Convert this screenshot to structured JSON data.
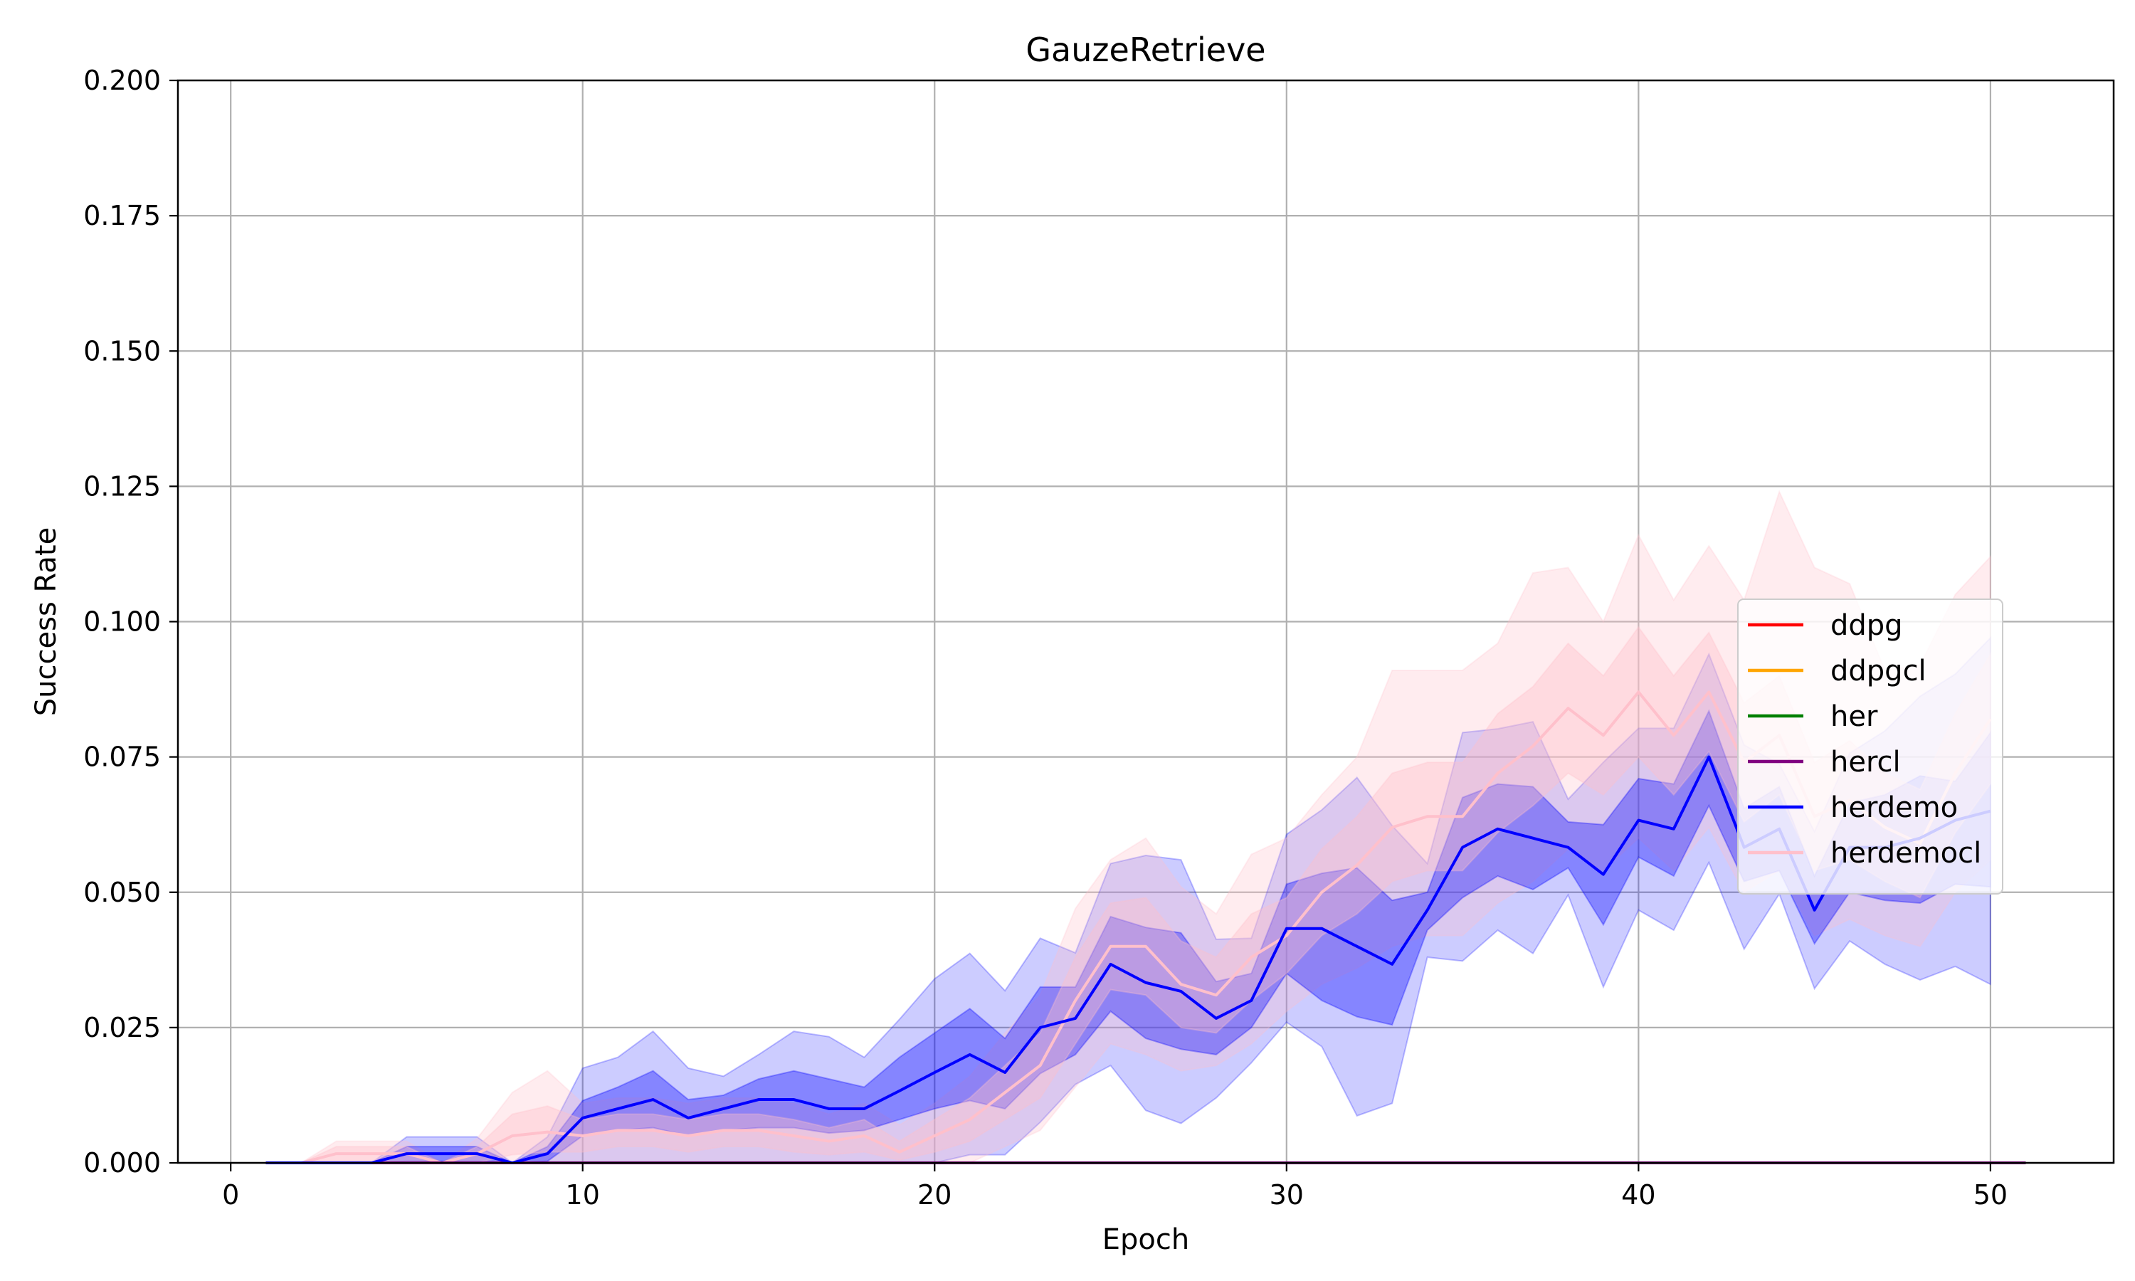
{
  "chart_data": {
    "type": "line",
    "title": "GauzeRetrieve",
    "xlabel": "Epoch",
    "ylabel": "Success Rate",
    "xlim": [
      -1.5,
      53.5
    ],
    "ylim": [
      0,
      0.2
    ],
    "xticks": [
      "0",
      "10",
      "20",
      "30",
      "40",
      "50"
    ],
    "xtick_values": [
      0,
      10,
      20,
      30,
      40,
      50
    ],
    "yticks": [
      "0.000",
      "0.025",
      "0.050",
      "0.075",
      "0.100",
      "0.125",
      "0.150",
      "0.175",
      "0.200"
    ],
    "ytick_values": [
      0,
      0.025,
      0.05,
      0.075,
      0.1,
      0.125,
      0.15,
      0.175,
      0.2
    ],
    "grid": true,
    "legend_position": "center-right",
    "series": [
      {
        "name": "ddpg",
        "color": "#ff0000",
        "x": [
          1,
          51
        ],
        "y": [
          0,
          0
        ]
      },
      {
        "name": "ddpgcl",
        "color": "#ffa500",
        "x": [
          1,
          51
        ],
        "y": [
          0,
          0
        ]
      },
      {
        "name": "her",
        "color": "#008000",
        "x": [
          1,
          51
        ],
        "y": [
          0,
          0
        ]
      },
      {
        "name": "hercl",
        "color": "#800080",
        "x": [
          1,
          51
        ],
        "y": [
          0,
          0
        ]
      },
      {
        "name": "herdemo",
        "color": "#0000ff",
        "x": [
          1,
          2,
          3,
          4,
          5,
          6,
          7,
          8,
          9,
          10,
          11,
          12,
          13,
          14,
          15,
          16,
          17,
          18,
          19,
          20,
          21,
          22,
          23,
          24,
          25,
          26,
          27,
          28,
          29,
          30,
          31,
          32,
          33,
          34,
          35,
          36,
          37,
          38,
          39,
          40,
          41,
          42,
          43,
          44,
          45,
          46,
          47,
          48,
          49,
          50
        ],
        "y": [
          0,
          0,
          0,
          0,
          0.0017,
          0.0017,
          0.0017,
          0,
          0.0017,
          0.0083,
          0.01,
          0.0117,
          0.0083,
          0.01,
          0.0117,
          0.0117,
          0.01,
          0.01,
          0.0133,
          0.0167,
          0.02,
          0.0167,
          0.025,
          0.0267,
          0.0367,
          0.0333,
          0.0317,
          0.0267,
          0.03,
          0.0433,
          0.0433,
          0.04,
          0.0367,
          0.0467,
          0.0583,
          0.0617,
          0.06,
          0.0583,
          0.0533,
          0.0633,
          0.0617,
          0.075,
          0.0583,
          0.0617,
          0.0467,
          0.0583,
          0.0583,
          0.06,
          0.0633,
          0.065
        ],
        "band_inner_low": [
          0,
          0,
          0,
          0,
          0.0003,
          0.0003,
          0.0003,
          0,
          0.0003,
          0.005,
          0.006,
          0.0065,
          0.005,
          0.006,
          0.0065,
          0.0065,
          0.0055,
          0.006,
          0.008,
          0.01,
          0.0115,
          0.01,
          0.0165,
          0.02,
          0.028,
          0.023,
          0.021,
          0.02,
          0.025,
          0.035,
          0.03,
          0.027,
          0.0255,
          0.043,
          0.049,
          0.053,
          0.0505,
          0.0545,
          0.044,
          0.0565,
          0.053,
          0.066,
          0.052,
          0.054,
          0.0405,
          0.05,
          0.0485,
          0.048,
          0.0515,
          0.051
        ],
        "band_inner_high": [
          0,
          0,
          0,
          0,
          0.003,
          0.003,
          0.003,
          0,
          0.003,
          0.0115,
          0.014,
          0.017,
          0.0117,
          0.0125,
          0.0155,
          0.017,
          0.0155,
          0.014,
          0.0195,
          0.024,
          0.0285,
          0.023,
          0.0325,
          0.0325,
          0.0455,
          0.0435,
          0.0425,
          0.0335,
          0.035,
          0.0515,
          0.0535,
          0.0545,
          0.0485,
          0.05,
          0.0675,
          0.07,
          0.0695,
          0.063,
          0.0625,
          0.071,
          0.07,
          0.0835,
          0.0655,
          0.0695,
          0.053,
          0.0665,
          0.068,
          0.0715,
          0.0705,
          0.0795
        ],
        "band_outer_low": [
          0,
          0,
          0,
          0,
          0,
          0,
          0,
          0,
          0,
          0,
          0,
          0,
          0,
          0,
          0,
          0,
          0,
          0,
          0,
          0,
          0.0015,
          0.0015,
          0.0075,
          0.0145,
          0.018,
          0.0097,
          0.0073,
          0.012,
          0.0185,
          0.026,
          0.0215,
          0.0087,
          0.011,
          0.038,
          0.0373,
          0.043,
          0.0387,
          0.0495,
          0.0325,
          0.0467,
          0.043,
          0.0555,
          0.0395,
          0.0497,
          0.0322,
          0.041,
          0.0367,
          0.0338,
          0.0363,
          0.033
        ],
        "band_outer_high": [
          0,
          0,
          0,
          0,
          0.0048,
          0.0048,
          0.0048,
          0,
          0.0048,
          0.0175,
          0.0195,
          0.0243,
          0.0175,
          0.016,
          0.02,
          0.0243,
          0.0233,
          0.0195,
          0.0265,
          0.034,
          0.0387,
          0.0318,
          0.0415,
          0.0388,
          0.0553,
          0.0568,
          0.056,
          0.0413,
          0.0415,
          0.0607,
          0.0652,
          0.0712,
          0.0623,
          0.0553,
          0.0795,
          0.0802,
          0.0815,
          0.0672,
          0.074,
          0.0803,
          0.0803,
          0.094,
          0.0772,
          0.0737,
          0.0612,
          0.0757,
          0.0798,
          0.0862,
          0.0903,
          0.097
        ]
      },
      {
        "name": "herdemocl",
        "color": "#ffc0cb",
        "x": [
          1,
          2,
          3,
          4,
          5,
          6,
          7,
          8,
          9,
          10,
          11,
          12,
          13,
          14,
          15,
          16,
          17,
          18,
          19,
          20,
          21,
          22,
          23,
          24,
          25,
          26,
          27,
          28,
          29,
          30,
          31,
          32,
          33,
          34,
          35,
          36,
          37,
          38,
          39,
          40,
          41,
          42,
          43,
          44,
          45,
          46,
          47,
          48,
          49,
          50
        ],
        "y": [
          0,
          0,
          0.0017,
          0.0017,
          0.0017,
          0,
          0.0017,
          0.005,
          0.0057,
          0.005,
          0.006,
          0.006,
          0.005,
          0.006,
          0.006,
          0.005,
          0.004,
          0.005,
          0.002,
          0.005,
          0.008,
          0.013,
          0.018,
          0.03,
          0.04,
          0.04,
          0.033,
          0.031,
          0.038,
          0.042,
          0.05,
          0.055,
          0.062,
          0.064,
          0.064,
          0.072,
          0.077,
          0.084,
          0.079,
          0.087,
          0.079,
          0.087,
          0.074,
          0.079,
          0.064,
          0.067,
          0.062,
          0.059,
          0.072,
          0.082
        ],
        "band_inner_low": [
          0,
          0,
          0,
          0,
          0,
          0,
          0,
          0.0015,
          0.002,
          0.002,
          0.003,
          0.003,
          0.002,
          0.003,
          0.003,
          0.002,
          0.0015,
          0.002,
          0.0005,
          0.002,
          0.004,
          0.008,
          0.012,
          0.022,
          0.032,
          0.031,
          0.025,
          0.024,
          0.03,
          0.035,
          0.042,
          0.046,
          0.052,
          0.054,
          0.054,
          0.061,
          0.066,
          0.072,
          0.068,
          0.075,
          0.068,
          0.076,
          0.063,
          0.068,
          0.054,
          0.056,
          0.052,
          0.049,
          0.061,
          0.07
        ],
        "band_inner_high": [
          0,
          0,
          0.003,
          0.003,
          0.003,
          0,
          0.003,
          0.009,
          0.0105,
          0.008,
          0.009,
          0.009,
          0.008,
          0.009,
          0.009,
          0.008,
          0.0065,
          0.008,
          0.004,
          0.008,
          0.012,
          0.018,
          0.024,
          0.038,
          0.048,
          0.049,
          0.041,
          0.038,
          0.046,
          0.049,
          0.058,
          0.064,
          0.072,
          0.074,
          0.074,
          0.083,
          0.088,
          0.096,
          0.09,
          0.099,
          0.09,
          0.098,
          0.085,
          0.09,
          0.074,
          0.078,
          0.072,
          0.069,
          0.083,
          0.094
        ],
        "band_outer_low": [
          0,
          0,
          0,
          0,
          0,
          0,
          0,
          0,
          0,
          0,
          0,
          0,
          0,
          0,
          0,
          0,
          0,
          0,
          0,
          0,
          0,
          0.003,
          0.006,
          0.014,
          0.022,
          0.02,
          0.017,
          0.018,
          0.022,
          0.028,
          0.033,
          0.036,
          0.04,
          0.042,
          0.042,
          0.048,
          0.052,
          0.058,
          0.054,
          0.06,
          0.054,
          0.062,
          0.05,
          0.054,
          0.042,
          0.045,
          0.042,
          0.04,
          0.05,
          0.056
        ],
        "band_outer_high": [
          0,
          0,
          0.004,
          0.004,
          0.004,
          0,
          0.0045,
          0.013,
          0.017,
          0.011,
          0.012,
          0.012,
          0.011,
          0.012,
          0.012,
          0.011,
          0.009,
          0.011,
          0.007,
          0.011,
          0.016,
          0.024,
          0.031,
          0.047,
          0.056,
          0.06,
          0.051,
          0.046,
          0.057,
          0.06,
          0.068,
          0.075,
          0.091,
          0.091,
          0.091,
          0.096,
          0.109,
          0.11,
          0.1,
          0.116,
          0.104,
          0.114,
          0.104,
          0.124,
          0.11,
          0.107,
          0.091,
          0.092,
          0.105,
          0.112
        ]
      }
    ]
  }
}
